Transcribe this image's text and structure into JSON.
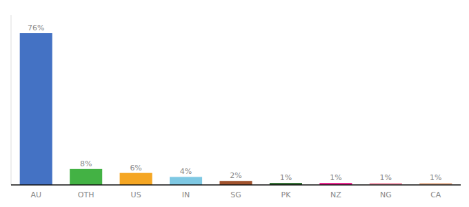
{
  "chart_data": {
    "type": "bar",
    "categories": [
      "AU",
      "OTH",
      "US",
      "IN",
      "SG",
      "PK",
      "NZ",
      "NG",
      "CA"
    ],
    "values": [
      76,
      8,
      6,
      4,
      2,
      1,
      1,
      1,
      1
    ],
    "value_labels": [
      "76%",
      "8%",
      "6%",
      "4%",
      "2%",
      "1%",
      "1%",
      "1%",
      "1%"
    ],
    "colors": [
      "#4472c4",
      "#43b244",
      "#f5a623",
      "#7ec8e3",
      "#a0522d",
      "#2d6a2d",
      "#e91e8c",
      "#f4a0b4",
      "#e8b89a"
    ],
    "ylim": [
      0,
      85
    ],
    "data_labels": true,
    "tick_labels": "x",
    "grid": false
  }
}
